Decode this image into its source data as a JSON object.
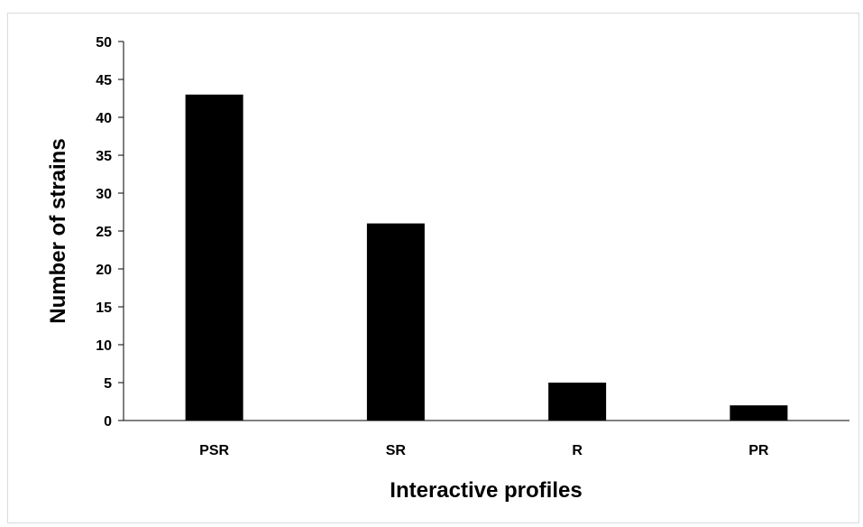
{
  "chart_data": {
    "type": "bar",
    "title": "",
    "categories": [
      "PSR",
      "SR",
      "R",
      "PR"
    ],
    "values": [
      43,
      26,
      5,
      2
    ],
    "xlabel": "Interactive profiles",
    "ylabel": "Number of strains",
    "ylim": [
      0,
      50
    ],
    "yticks": [
      0,
      5,
      10,
      15,
      20,
      25,
      30,
      35,
      40,
      45,
      50
    ],
    "grid": false,
    "legend": "none",
    "bar_color": "#000000"
  }
}
